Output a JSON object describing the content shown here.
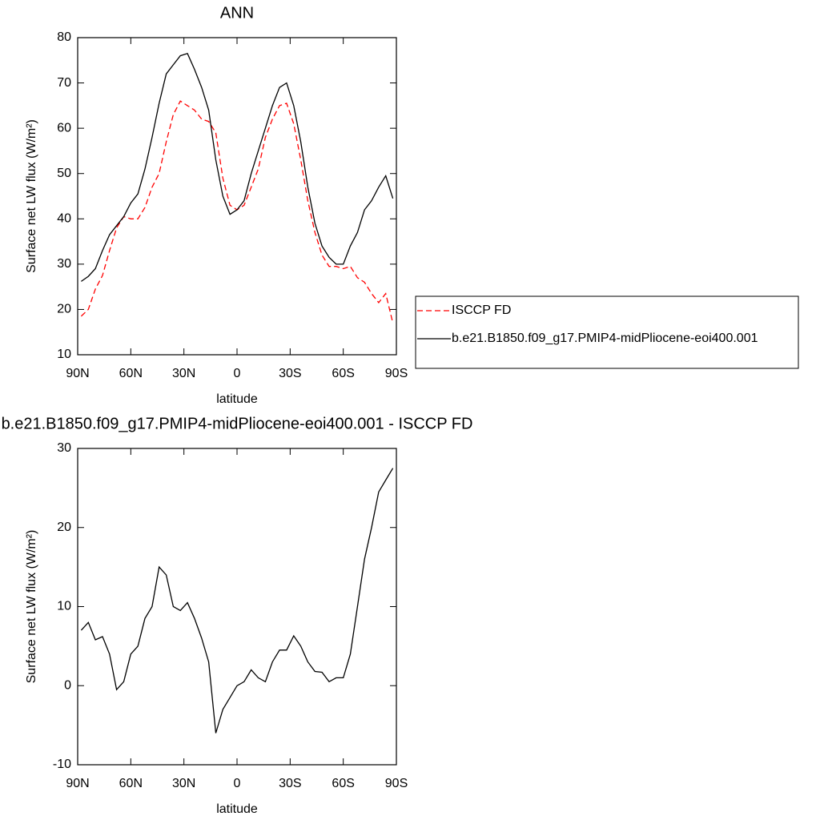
{
  "chart_data": [
    {
      "type": "line",
      "title": "ANN",
      "xlabel": "latitude",
      "ylabel": "Surface net LW flux (W/m²)",
      "x": [
        88,
        84,
        80,
        76,
        72,
        68,
        64,
        60,
        56,
        52,
        48,
        44,
        40,
        36,
        32,
        28,
        24,
        20,
        16,
        12,
        8,
        4,
        0,
        -4,
        -8,
        -12,
        -16,
        -20,
        -24,
        -28,
        -32,
        -36,
        -40,
        -44,
        -48,
        -52,
        -56,
        -60,
        -64,
        -68,
        -72,
        -76,
        -80,
        -84,
        -88
      ],
      "series": [
        {
          "name": "ISCCP FD",
          "color": "#ff0000",
          "line_style": "dashed",
          "values": [
            18.5,
            20,
            24.5,
            27.5,
            33,
            38,
            40.5,
            40,
            40,
            42.5,
            47,
            50,
            57,
            63,
            66,
            65,
            64,
            62,
            61.5,
            59,
            49,
            43,
            42,
            43,
            47,
            51,
            58,
            62,
            65,
            65.5,
            61,
            53,
            44,
            37,
            32,
            29.5,
            29.5,
            29,
            29.5,
            27,
            26,
            23.5,
            21.5,
            23.5,
            17
          ]
        },
        {
          "name": "b.e21.B1850.f09_g17.PMIP4-midPliocene-eoi400.001",
          "color": "#000000",
          "line_style": "solid",
          "values": [
            26.2,
            27.3,
            29,
            33,
            36.5,
            38.5,
            40.5,
            43.5,
            45.5,
            51,
            58,
            65.5,
            72,
            74,
            76,
            76.5,
            73,
            69,
            64,
            53,
            45,
            41,
            42,
            44,
            50,
            55,
            60,
            65,
            69,
            70,
            65,
            57,
            47,
            39,
            34,
            31.5,
            30,
            30,
            34,
            37,
            42,
            44,
            47,
            49.5,
            44.5
          ]
        }
      ],
      "xlim": [
        90,
        -90
      ],
      "xticks": [
        {
          "value": 90,
          "label": "90N"
        },
        {
          "value": 60,
          "label": "60N"
        },
        {
          "value": 30,
          "label": "30N"
        },
        0,
        {
          "value": -30,
          "label": "30S"
        },
        {
          "value": -60,
          "label": "60S"
        },
        {
          "value": -90,
          "label": "90S"
        }
      ],
      "ylim": [
        10,
        80
      ],
      "yticks": [
        10,
        20,
        30,
        40,
        50,
        60,
        70,
        80
      ],
      "legend": "right"
    },
    {
      "type": "line",
      "title": "b.e21.B1850.f09_g17.PMIP4-midPliocene-eoi400.001 - ISCCP FD",
      "xlabel": "latitude",
      "ylabel": "Surface net LW flux (W/m²)",
      "x": [
        88,
        84,
        80,
        76,
        72,
        68,
        64,
        60,
        56,
        52,
        48,
        44,
        40,
        36,
        32,
        28,
        24,
        20,
        16,
        12,
        8,
        4,
        0,
        -4,
        -8,
        -12,
        -16,
        -20,
        -24,
        -28,
        -32,
        -36,
        -40,
        -44,
        -48,
        -52,
        -56,
        -60,
        -64,
        -68,
        -72,
        -76,
        -80,
        -84,
        -88
      ],
      "series": [
        {
          "color": "#000000",
          "line_style": "solid",
          "values": [
            7,
            8,
            5.8,
            6.2,
            4,
            -0.5,
            0.5,
            4,
            5,
            8.5,
            10,
            15,
            14,
            10,
            9.5,
            10.5,
            8.5,
            6,
            3,
            -6,
            -3,
            -1.5,
            0,
            0.5,
            2,
            1,
            0.5,
            3,
            4.5,
            4.5,
            6.3,
            5,
            3,
            1.8,
            1.7,
            0.5,
            1,
            1,
            4,
            10,
            16,
            20,
            24.5,
            26,
            27.5
          ]
        }
      ],
      "xlim": [
        90,
        -90
      ],
      "xticks": [
        {
          "value": 90,
          "label": "90N"
        },
        {
          "value": 60,
          "label": "60N"
        },
        {
          "value": 30,
          "label": "30N"
        },
        0,
        {
          "value": -30,
          "label": "30S"
        },
        {
          "value": -60,
          "label": "60S"
        },
        {
          "value": -90,
          "label": "90S"
        }
      ],
      "ylim": [
        -10,
        30
      ],
      "yticks": [
        -10,
        0,
        10,
        20,
        30
      ]
    }
  ]
}
